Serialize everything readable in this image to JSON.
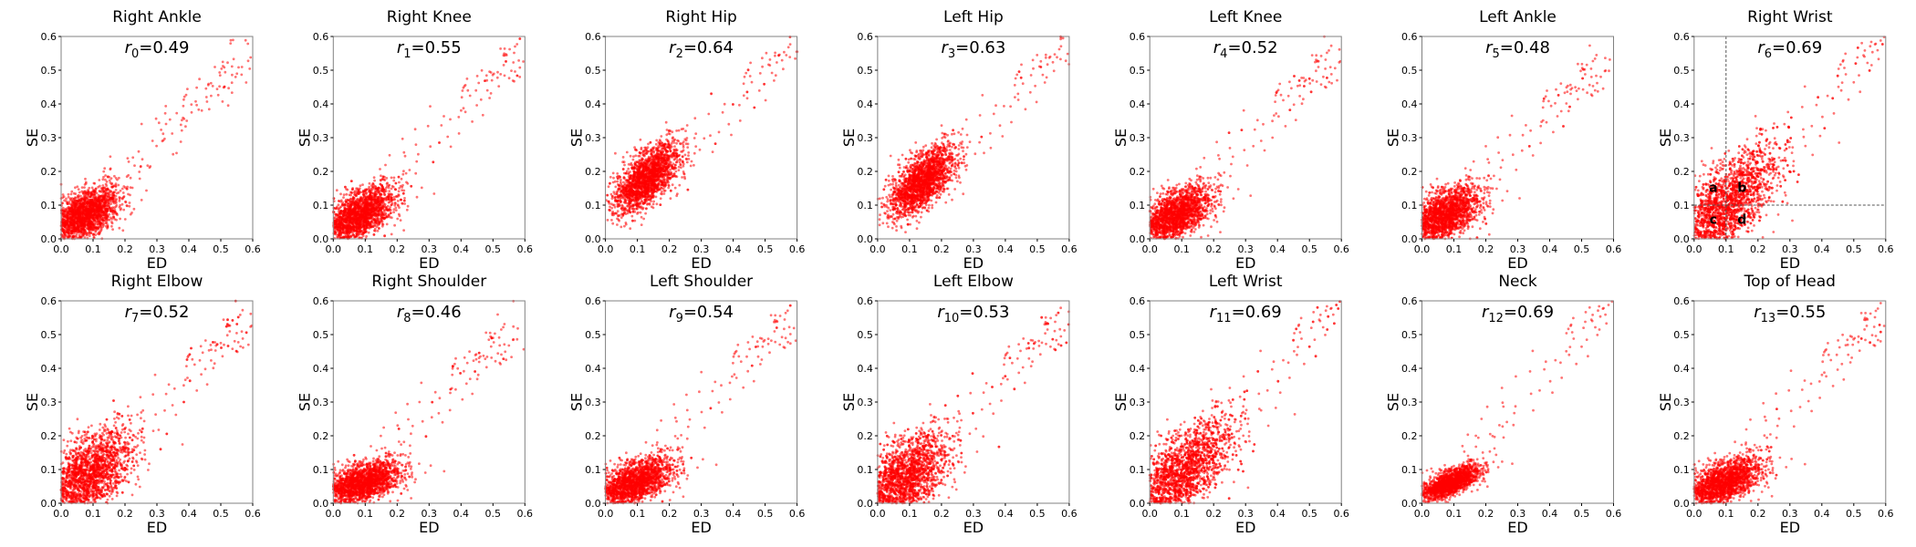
{
  "chart_data": [
    {
      "type": "scatter",
      "title": "Right Ankle",
      "annotation": {
        "var": "r",
        "sub": "0",
        "value": "=0.49"
      },
      "xlabel": "ED",
      "ylabel": "SE",
      "xlim": [
        0,
        0.6
      ],
      "ylim": [
        0,
        0.6
      ],
      "ticks": [
        "0.0",
        "0.1",
        "0.2",
        "0.3",
        "0.4",
        "0.5",
        "0.6"
      ],
      "r": 0.49,
      "center": [
        0.07,
        0.07
      ],
      "spread": [
        0.055,
        0.04
      ],
      "n": 2200
    },
    {
      "type": "scatter",
      "title": "Right Knee",
      "annotation": {
        "var": "r",
        "sub": "1",
        "value": "=0.55"
      },
      "xlabel": "ED",
      "ylabel": "SE",
      "xlim": [
        0,
        0.6
      ],
      "ylim": [
        0,
        0.6
      ],
      "ticks": [
        "0.0",
        "0.1",
        "0.2",
        "0.3",
        "0.4",
        "0.5",
        "0.6"
      ],
      "r": 0.55,
      "center": [
        0.08,
        0.07
      ],
      "spread": [
        0.055,
        0.04
      ],
      "n": 2200
    },
    {
      "type": "scatter",
      "title": "Right Hip",
      "annotation": {
        "var": "r",
        "sub": "2",
        "value": "=0.64"
      },
      "xlabel": "ED",
      "ylabel": "SE",
      "xlim": [
        0,
        0.6
      ],
      "ylim": [
        0,
        0.6
      ],
      "ticks": [
        "0.0",
        "0.1",
        "0.2",
        "0.3",
        "0.4",
        "0.5",
        "0.6"
      ],
      "r": 0.64,
      "center": [
        0.13,
        0.18
      ],
      "spread": [
        0.05,
        0.05
      ],
      "n": 2200
    },
    {
      "type": "scatter",
      "title": "Left Hip",
      "annotation": {
        "var": "r",
        "sub": "3",
        "value": "=0.63"
      },
      "xlabel": "ED",
      "ylabel": "SE",
      "xlim": [
        0,
        0.6
      ],
      "ylim": [
        0,
        0.6
      ],
      "ticks": [
        "0.0",
        "0.1",
        "0.2",
        "0.3",
        "0.4",
        "0.5",
        "0.6"
      ],
      "r": 0.63,
      "center": [
        0.14,
        0.17
      ],
      "spread": [
        0.05,
        0.05
      ],
      "n": 2200
    },
    {
      "type": "scatter",
      "title": "Left Knee",
      "annotation": {
        "var": "r",
        "sub": "4",
        "value": "=0.52"
      },
      "xlabel": "ED",
      "ylabel": "SE",
      "xlim": [
        0,
        0.6
      ],
      "ylim": [
        0,
        0.6
      ],
      "ticks": [
        "0.0",
        "0.1",
        "0.2",
        "0.3",
        "0.4",
        "0.5",
        "0.6"
      ],
      "r": 0.52,
      "center": [
        0.08,
        0.07
      ],
      "spread": [
        0.055,
        0.04
      ],
      "n": 2200
    },
    {
      "type": "scatter",
      "title": "Left Ankle",
      "annotation": {
        "var": "r",
        "sub": "5",
        "value": "=0.48"
      },
      "xlabel": "ED",
      "ylabel": "SE",
      "xlim": [
        0,
        0.6
      ],
      "ylim": [
        0,
        0.6
      ],
      "ticks": [
        "0.0",
        "0.1",
        "0.2",
        "0.3",
        "0.4",
        "0.5",
        "0.6"
      ],
      "r": 0.48,
      "center": [
        0.07,
        0.07
      ],
      "spread": [
        0.055,
        0.04
      ],
      "n": 2200
    },
    {
      "type": "scatter",
      "title": "Right Wrist",
      "annotation": {
        "var": "r",
        "sub": "6",
        "value": "=0.69"
      },
      "xlabel": "ED",
      "ylabel": "SE",
      "xlim": [
        0,
        0.6
      ],
      "ylim": [
        0,
        0.6
      ],
      "ticks": [
        "0.0",
        "0.1",
        "0.2",
        "0.3",
        "0.4",
        "0.5",
        "0.6"
      ],
      "r": 0.69,
      "center": [
        0.09,
        0.09
      ],
      "spread": [
        0.085,
        0.085
      ],
      "n": 2600,
      "thresholds": {
        "x": 0.1,
        "y": 0.1
      },
      "quadrant_labels": [
        "a",
        "b",
        "c",
        "d"
      ]
    },
    {
      "type": "scatter",
      "title": "Right Elbow",
      "annotation": {
        "var": "r",
        "sub": "7",
        "value": "=0.52"
      },
      "xlabel": "ED",
      "ylabel": "SE",
      "xlim": [
        0,
        0.6
      ],
      "ylim": [
        0,
        0.6
      ],
      "ticks": [
        "0.0",
        "0.1",
        "0.2",
        "0.3",
        "0.4",
        "0.5",
        "0.6"
      ],
      "r": 0.52,
      "center": [
        0.08,
        0.08
      ],
      "spread": [
        0.07,
        0.065
      ],
      "n": 2400
    },
    {
      "type": "scatter",
      "title": "Right Shoulder",
      "annotation": {
        "var": "r",
        "sub": "8",
        "value": "=0.46"
      },
      "xlabel": "ED",
      "ylabel": "SE",
      "xlim": [
        0,
        0.6
      ],
      "ylim": [
        0,
        0.6
      ],
      "ticks": [
        "0.0",
        "0.1",
        "0.2",
        "0.3",
        "0.4",
        "0.5",
        "0.6"
      ],
      "r": 0.46,
      "center": [
        0.09,
        0.06
      ],
      "spread": [
        0.06,
        0.03
      ],
      "n": 2200
    },
    {
      "type": "scatter",
      "title": "Left Shoulder",
      "annotation": {
        "var": "r",
        "sub": "9",
        "value": "=0.54"
      },
      "xlabel": "ED",
      "ylabel": "SE",
      "xlim": [
        0,
        0.6
      ],
      "ylim": [
        0,
        0.6
      ],
      "ticks": [
        "0.0",
        "0.1",
        "0.2",
        "0.3",
        "0.4",
        "0.5",
        "0.6"
      ],
      "r": 0.54,
      "center": [
        0.09,
        0.06
      ],
      "spread": [
        0.06,
        0.035
      ],
      "n": 2200
    },
    {
      "type": "scatter",
      "title": "Left Elbow",
      "annotation": {
        "var": "r",
        "sub": "10",
        "value": "=0.53"
      },
      "xlabel": "ED",
      "ylabel": "SE",
      "xlim": [
        0,
        0.6
      ],
      "ylim": [
        0,
        0.6
      ],
      "ticks": [
        "0.0",
        "0.1",
        "0.2",
        "0.3",
        "0.4",
        "0.5",
        "0.6"
      ],
      "r": 0.53,
      "center": [
        0.08,
        0.07
      ],
      "spread": [
        0.07,
        0.065
      ],
      "n": 2400
    },
    {
      "type": "scatter",
      "title": "Left Wrist",
      "annotation": {
        "var": "r",
        "sub": "11",
        "value": "=0.69"
      },
      "xlabel": "ED",
      "ylabel": "SE",
      "xlim": [
        0,
        0.6
      ],
      "ylim": [
        0,
        0.6
      ],
      "ticks": [
        "0.0",
        "0.1",
        "0.2",
        "0.3",
        "0.4",
        "0.5",
        "0.6"
      ],
      "r": 0.69,
      "center": [
        0.09,
        0.08
      ],
      "spread": [
        0.085,
        0.08
      ],
      "n": 2600
    },
    {
      "type": "scatter",
      "title": "Neck",
      "annotation": {
        "var": "r",
        "sub": "12",
        "value": "=0.69"
      },
      "xlabel": "ED",
      "ylabel": "SE",
      "xlim": [
        0,
        0.6
      ],
      "ylim": [
        0,
        0.6
      ],
      "ticks": [
        "0.0",
        "0.1",
        "0.2",
        "0.3",
        "0.4",
        "0.5",
        "0.6"
      ],
      "r": 0.69,
      "center": [
        0.09,
        0.06
      ],
      "spread": [
        0.045,
        0.025
      ],
      "n": 1800
    },
    {
      "type": "scatter",
      "title": "Top of Head",
      "annotation": {
        "var": "r",
        "sub": "13",
        "value": "=0.55"
      },
      "xlabel": "ED",
      "ylabel": "SE",
      "xlim": [
        0,
        0.6
      ],
      "ylim": [
        0,
        0.6
      ],
      "ticks": [
        "0.0",
        "0.1",
        "0.2",
        "0.3",
        "0.4",
        "0.5",
        "0.6"
      ],
      "r": 0.55,
      "center": [
        0.09,
        0.06
      ],
      "spread": [
        0.06,
        0.035
      ],
      "n": 2200
    }
  ],
  "colors": {
    "points": "#ff0000",
    "axes": "#808080",
    "guides": "#555555"
  }
}
